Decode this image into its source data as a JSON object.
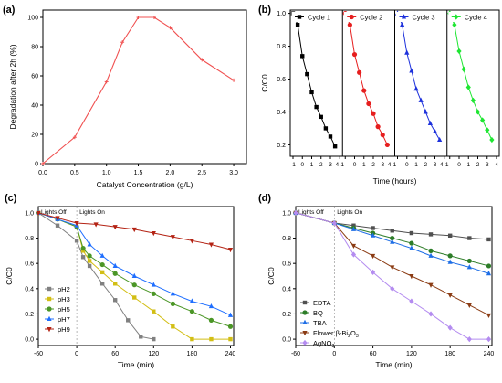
{
  "figure": {
    "panel_labels": [
      "(a)",
      "(b)",
      "(c)",
      "(d)"
    ]
  },
  "chart_data": [
    {
      "panel": "(a)",
      "type": "line",
      "xlabel": "Catalyst Concentration (g/L)",
      "ylabel": "Degradation after 2h (%)",
      "xlim": [
        0,
        3.2
      ],
      "ylim": [
        0,
        105
      ],
      "xticks": [
        0,
        0.5,
        1.0,
        1.5,
        2.0,
        2.5,
        3.0
      ],
      "xtick_labels": [
        "0.0",
        "0.5",
        "1.0",
        "1.5",
        "2.0",
        "2.5",
        "3.0"
      ],
      "yticks": [
        0,
        20,
        40,
        60,
        80,
        100
      ],
      "ytick_labels": [
        "0",
        "20",
        "40",
        "60",
        "80",
        "100"
      ],
      "color": "#f05050",
      "series": [
        {
          "x": [
            0,
            0.5,
            1.0,
            1.25,
            1.5,
            1.75,
            2.0,
            2.5,
            3.0
          ],
          "y": [
            0,
            18,
            56,
            83,
            100,
            100,
            93,
            71,
            57
          ]
        }
      ]
    },
    {
      "panel": "(b)",
      "type": "line",
      "xlabel": "Time (hours)",
      "ylabel": "C/C0",
      "ylim": [
        0.13,
        1.02
      ],
      "yticks": [
        0.2,
        0.4,
        0.6,
        0.8,
        1.0
      ],
      "ytick_labels": [
        "0.2",
        "0.4",
        "0.6",
        "0.8",
        "1.0"
      ],
      "cycle_xlim": [
        -1,
        4
      ],
      "cycle_xticks": [
        -1,
        0,
        1,
        2,
        3,
        4
      ],
      "xtick_labels": [
        "-1",
        "0",
        "1",
        "2",
        "3",
        "4-1",
        "0",
        "1",
        "2",
        "3",
        "4-1",
        "0",
        "1",
        "2",
        "3",
        "4-1",
        "0",
        "1",
        "2",
        "3",
        "4"
      ],
      "x": [
        -1,
        -0.5,
        0,
        0.5,
        1,
        1.5,
        2,
        2.5,
        3,
        3.5,
        4
      ],
      "series": [
        {
          "name": "Cycle 1",
          "color": "#000000",
          "marker": "square",
          "values": [
            1.0,
            0.93,
            0.74,
            0.63,
            0.52,
            0.43,
            0.37,
            0.3,
            0.25,
            0.19,
            null
          ]
        },
        {
          "name": "Cycle 2",
          "color": "#e61e1e",
          "marker": "circle",
          "values": [
            1.0,
            0.93,
            0.75,
            0.64,
            0.53,
            0.45,
            0.39,
            0.31,
            0.26,
            0.2,
            null
          ]
        },
        {
          "name": "Cycle 3",
          "color": "#1e32dc",
          "marker": "triangle",
          "values": [
            1.0,
            0.93,
            0.76,
            0.65,
            0.54,
            0.47,
            0.4,
            0.33,
            0.28,
            0.23,
            null
          ]
        },
        {
          "name": "Cycle 4",
          "color": "#1ee632",
          "marker": "diamond",
          "values": [
            1.0,
            0.93,
            0.77,
            0.66,
            0.55,
            0.47,
            0.4,
            0.35,
            0.29,
            0.23,
            null
          ]
        }
      ]
    },
    {
      "panel": "(c)",
      "type": "line",
      "xlabel": "Time (min)",
      "ylabel": "C/C0",
      "xlim": [
        -60,
        245
      ],
      "ylim": [
        -0.05,
        1.05
      ],
      "xticks": [
        -60,
        0,
        60,
        120,
        180,
        240
      ],
      "xtick_labels": [
        "-60",
        "0",
        "60",
        "120",
        "180",
        "240"
      ],
      "yticks": [
        0,
        0.2,
        0.4,
        0.6,
        0.8,
        1.0
      ],
      "ytick_labels": [
        "0.0",
        "0.2",
        "0.4",
        "0.6",
        "0.8",
        "1.0"
      ],
      "annotations": [
        "Lights Off",
        "Lights On"
      ],
      "series": [
        {
          "name": "pH2",
          "color": "#808080",
          "marker": "square",
          "x": [
            -60,
            -30,
            0,
            10,
            20,
            40,
            60,
            80,
            100,
            120
          ],
          "y": [
            1.0,
            0.9,
            0.78,
            0.65,
            0.58,
            0.44,
            0.31,
            0.15,
            0.02,
            0.0
          ]
        },
        {
          "name": "pH3",
          "color": "#d2be14",
          "marker": "square",
          "x": [
            -60,
            -30,
            0,
            10,
            20,
            40,
            60,
            90,
            120,
            150,
            180,
            210,
            240
          ],
          "y": [
            1.0,
            0.95,
            0.89,
            0.7,
            0.62,
            0.53,
            0.44,
            0.33,
            0.22,
            0.1,
            0.0,
            0.0,
            0.0
          ]
        },
        {
          "name": "pH5",
          "color": "#4b9626",
          "marker": "circle",
          "x": [
            -60,
            -30,
            0,
            10,
            20,
            40,
            60,
            90,
            120,
            150,
            180,
            210,
            240
          ],
          "y": [
            1.0,
            0.95,
            0.89,
            0.72,
            0.66,
            0.59,
            0.52,
            0.43,
            0.36,
            0.28,
            0.22,
            0.15,
            0.1
          ]
        },
        {
          "name": "pH7",
          "color": "#1e6eff",
          "marker": "triangle",
          "x": [
            -60,
            -30,
            0,
            20,
            40,
            60,
            90,
            120,
            150,
            180,
            210,
            240
          ],
          "y": [
            1.0,
            0.95,
            0.9,
            0.75,
            0.66,
            0.58,
            0.5,
            0.43,
            0.36,
            0.3,
            0.26,
            0.19
          ]
        },
        {
          "name": "pH9",
          "color": "#b42314",
          "marker": "triangle-down",
          "x": [
            -60,
            -30,
            0,
            30,
            60,
            90,
            120,
            150,
            180,
            210,
            240
          ],
          "y": [
            1.0,
            0.96,
            0.92,
            0.91,
            0.89,
            0.87,
            0.84,
            0.81,
            0.78,
            0.75,
            0.71
          ]
        }
      ]
    },
    {
      "panel": "(d)",
      "type": "line",
      "xlabel": "Time (min)",
      "ylabel": "C/C0",
      "xlim": [
        -60,
        245
      ],
      "ylim": [
        -0.05,
        1.05
      ],
      "xticks": [
        -60,
        0,
        60,
        120,
        180,
        240
      ],
      "xtick_labels": [
        "-60",
        "0",
        "60",
        "120",
        "180",
        "240"
      ],
      "yticks": [
        0,
        0.2,
        0.4,
        0.6,
        0.8,
        1.0
      ],
      "ytick_labels": [
        "0.0",
        "0.2",
        "0.4",
        "0.6",
        "0.8",
        "1.0"
      ],
      "annotations": [
        "Lights Off",
        "Lights On"
      ],
      "series": [
        {
          "name": "EDTA",
          "color": "#505050",
          "marker": "square",
          "x": [
            -60,
            0,
            30,
            60,
            90,
            120,
            150,
            180,
            210,
            240
          ],
          "y": [
            1.0,
            0.92,
            0.9,
            0.88,
            0.86,
            0.84,
            0.83,
            0.82,
            0.8,
            0.79
          ]
        },
        {
          "name": "BQ",
          "color": "#2d7d28",
          "marker": "circle",
          "x": [
            -60,
            0,
            30,
            60,
            90,
            120,
            150,
            180,
            210,
            240
          ],
          "y": [
            1.0,
            0.92,
            0.88,
            0.84,
            0.8,
            0.76,
            0.7,
            0.66,
            0.62,
            0.58
          ]
        },
        {
          "name": "TBA",
          "color": "#1e6ee6",
          "marker": "triangle",
          "x": [
            -60,
            0,
            30,
            60,
            90,
            120,
            150,
            180,
            210,
            240
          ],
          "y": [
            1.0,
            0.92,
            0.87,
            0.82,
            0.77,
            0.72,
            0.66,
            0.61,
            0.57,
            0.52
          ]
        },
        {
          "name_parts": [
            "Flower β-Bi",
            "2",
            "O",
            "3"
          ],
          "color": "#8b3c14",
          "marker": "triangle-down",
          "x": [
            -60,
            0,
            30,
            60,
            90,
            120,
            150,
            180,
            210,
            240
          ],
          "y": [
            1.0,
            0.92,
            0.74,
            0.66,
            0.57,
            0.5,
            0.43,
            0.35,
            0.27,
            0.19
          ]
        },
        {
          "name_parts": [
            "AgNO",
            "3"
          ],
          "color": "#b48cf0",
          "marker": "diamond",
          "x": [
            -60,
            0,
            30,
            60,
            90,
            120,
            150,
            180,
            210,
            240
          ],
          "y": [
            1.0,
            0.92,
            0.67,
            0.53,
            0.4,
            0.3,
            0.2,
            0.09,
            0.0,
            0.0
          ]
        }
      ]
    }
  ]
}
